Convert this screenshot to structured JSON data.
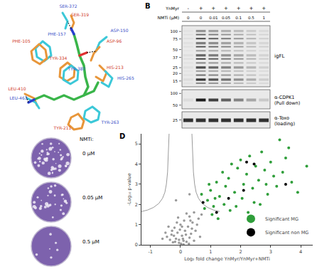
{
  "panel_a": {
    "residues": [
      {
        "text": "SER-372",
        "color": "#3a4fc8"
      },
      {
        "text": "SER-319",
        "color": "#d03a2a"
      },
      {
        "text": "ASP-150",
        "color": "#3a4fc8"
      },
      {
        "text": "ASP-96",
        "color": "#d03a2a"
      },
      {
        "text": "PHE-157",
        "color": "#3a4fc8"
      },
      {
        "text": "PHE-105",
        "color": "#d03a2a"
      },
      {
        "text": "TYR-334",
        "color": "#d03a2a"
      },
      {
        "text": "TYR-387",
        "color": "#3a4fc8"
      },
      {
        "text": "HIS-213",
        "color": "#d03a2a"
      },
      {
        "text": "HIS-265",
        "color": "#3a4fc8"
      },
      {
        "text": "LEU-410",
        "color": "#d03a2a"
      },
      {
        "text": "LEU-463",
        "color": "#3a4fc8"
      },
      {
        "text": "TYR-263",
        "color": "#3a4fc8"
      },
      {
        "text": "TYR-211",
        "color": "#d03a2a"
      }
    ]
  },
  "panel_b": {
    "label": "B",
    "rows": [
      {
        "label": "YnMyr",
        "lanes": [
          "-",
          "+",
          "+",
          "+",
          "+",
          "+",
          "+"
        ]
      },
      {
        "label": "NMTi (µM)",
        "lanes": [
          "0",
          "0",
          "0.01",
          "0.05",
          "0.1",
          "0.5",
          "1"
        ]
      }
    ],
    "blots": [
      {
        "label": "igFL",
        "markers": [
          100,
          75,
          50,
          37,
          25,
          20,
          15
        ]
      },
      {
        "label": "α-CDPK1",
        "sublabel": "(Pull down)",
        "markers": [
          100,
          50
        ]
      },
      {
        "label": "α-Toxo",
        "sublabel": "(loading)",
        "markers": [
          25
        ]
      }
    ]
  },
  "panel_c": {
    "title": "NMTi:",
    "conditions": [
      "0 µM",
      "0.05 µM",
      "0.5 µM"
    ]
  },
  "chart_data": {
    "type": "scatter",
    "label": "D",
    "x_label": "Log₂ fold change YnMyr/YnMyr+NMTi",
    "y_label": "-Log₁₀ p-value",
    "xlim": [
      -1.3,
      4.4
    ],
    "ylim": [
      0,
      5.5
    ],
    "xticks": [
      -1,
      0,
      1,
      2,
      3,
      4
    ],
    "yticks": [
      0,
      1,
      2,
      3,
      4,
      5
    ],
    "grid": false,
    "legend": "lower right",
    "background_points": {
      "color": "#9a9a9a",
      "x": [
        -0.05,
        0.02,
        0.1,
        -0.15,
        0.2,
        -0.25,
        0.3,
        0.05,
        -0.1,
        0.15,
        -0.3,
        0.35,
        0.25,
        -0.2,
        0.0,
        0.4,
        -0.4,
        0.12,
        -0.08,
        0.3,
        -0.35,
        0.45,
        -0.45,
        0.5,
        0.55,
        -0.5,
        0.08,
        -0.02,
        0.18,
        -0.18,
        0.28,
        -0.28,
        0.38,
        0.6,
        0.2,
        -0.12,
        0.45,
        0.05,
        -0.22,
        0.33,
        0.7,
        0.65,
        -0.6,
        0.1,
        -0.05,
        -0.15,
        0.3
      ],
      "y": [
        0.1,
        0.05,
        0.2,
        0.3,
        0.15,
        0.12,
        0.35,
        0.45,
        0.6,
        0.7,
        0.5,
        0.55,
        0.9,
        0.85,
        1.0,
        1.1,
        0.9,
        1.2,
        1.35,
        1.4,
        0.25,
        0.2,
        0.4,
        0.7,
        1.0,
        0.6,
        0.3,
        0.75,
        0.5,
        0.15,
        0.05,
        0.7,
        0.8,
        1.3,
        1.55,
        1.1,
        1.6,
        0.9,
        0.45,
        1.2,
        1.5,
        0.4,
        0.3,
        0.02,
        0.25,
        2.2,
        2.5
      ]
    },
    "threshold_curves": [
      {
        "color": "#9a9a9a",
        "x": [
          0.38,
          0.4,
          0.43,
          0.47,
          0.52,
          0.6,
          0.72,
          0.9,
          1.1,
          1.3
        ],
        "y": [
          5.5,
          4.5,
          3.6,
          3.0,
          2.6,
          2.3,
          2.05,
          1.85,
          1.72,
          1.65
        ]
      },
      {
        "color": "#9a9a9a",
        "x": [
          -0.38,
          -0.4,
          -0.43,
          -0.47,
          -0.52,
          -0.6,
          -0.72,
          -0.9,
          -1.1,
          -1.3
        ],
        "y": [
          5.5,
          4.5,
          3.6,
          3.0,
          2.6,
          2.3,
          2.05,
          1.85,
          1.72,
          1.65
        ]
      }
    ],
    "series": [
      {
        "name": "Significant MG",
        "color": "#2f9e3a",
        "x": [
          0.7,
          0.8,
          0.9,
          1.0,
          1.1,
          1.2,
          1.3,
          1.4,
          1.5,
          1.6,
          1.7,
          1.8,
          1.9,
          2.0,
          2.1,
          2.2,
          2.3,
          2.4,
          2.5,
          2.6,
          2.7,
          2.8,
          2.9,
          3.0,
          3.1,
          3.2,
          3.3,
          3.4,
          3.5,
          3.7,
          3.9,
          4.2,
          1.05,
          1.25,
          1.45,
          1.65,
          1.85,
          2.05,
          2.25,
          2.45,
          0.95,
          1.15,
          2.65,
          2.85,
          3.6
        ],
        "y": [
          2.5,
          1.8,
          2.2,
          2.7,
          1.9,
          3.1,
          2.4,
          3.6,
          2.9,
          3.3,
          4.0,
          2.6,
          3.8,
          4.2,
          3.0,
          3.5,
          4.4,
          2.8,
          3.9,
          3.2,
          4.6,
          3.7,
          2.5,
          4.1,
          3.4,
          2.9,
          5.2,
          3.6,
          4.3,
          3.1,
          2.6,
          3.9,
          1.5,
          1.3,
          2.0,
          1.7,
          1.9,
          2.3,
          1.6,
          2.1,
          3.0,
          2.3,
          2.0,
          3.0,
          4.8
        ]
      },
      {
        "name": "Significant non MG",
        "color": "#000000",
        "x": [
          0.75,
          1.2,
          1.6,
          2.2,
          2.45,
          3.5,
          2.1
        ],
        "y": [
          2.1,
          1.6,
          2.3,
          4.1,
          4.0,
          3.0,
          2.7
        ]
      }
    ]
  }
}
